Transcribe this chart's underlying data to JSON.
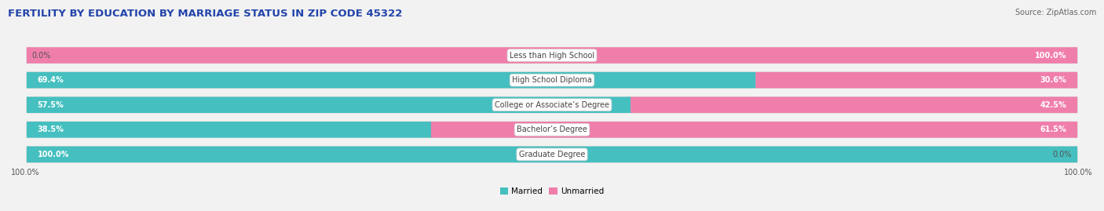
{
  "title": "FERTILITY BY EDUCATION BY MARRIAGE STATUS IN ZIP CODE 45322",
  "source": "Source: ZipAtlas.com",
  "categories": [
    "Less than High School",
    "High School Diploma",
    "College or Associate’s Degree",
    "Bachelor’s Degree",
    "Graduate Degree"
  ],
  "married": [
    0.0,
    69.4,
    57.5,
    38.5,
    100.0
  ],
  "unmarried": [
    100.0,
    30.6,
    42.5,
    61.5,
    0.0
  ],
  "married_color": "#45bfbf",
  "unmarried_color": "#f07eab",
  "unmarried_light_color": "#f5aac8",
  "bg_color": "#f2f2f2",
  "bar_bg_color": "#e2e2e2",
  "title_fontsize": 9.5,
  "source_fontsize": 7,
  "label_fontsize": 7,
  "cat_fontsize": 7,
  "text_color_white": "#ffffff",
  "text_color_dark": "#555555"
}
